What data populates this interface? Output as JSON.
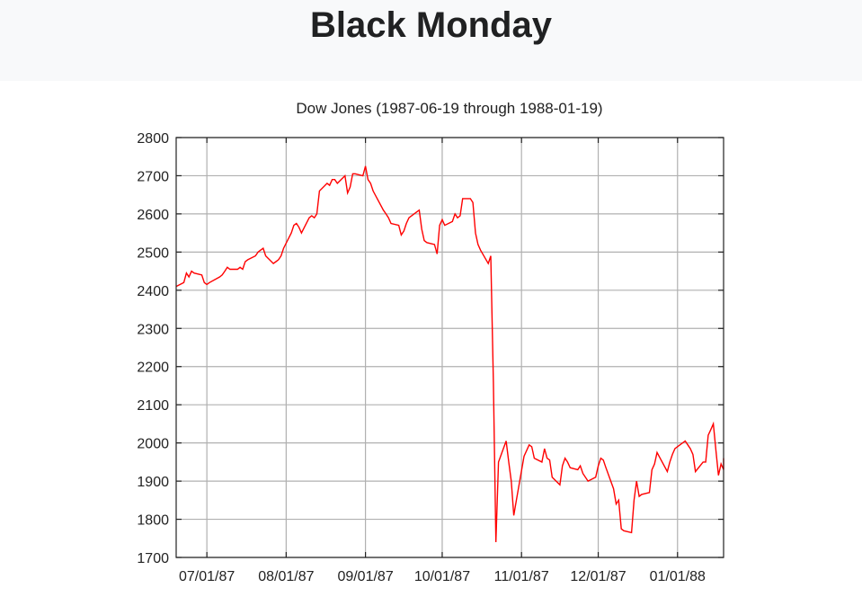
{
  "page": {
    "title": "Black Monday"
  },
  "chart_data": {
    "type": "line",
    "title": "Dow Jones (1987-06-19 through 1988-01-19)",
    "xlabel": "",
    "ylabel": "",
    "xlim": [
      "1987-06-19",
      "1988-01-19"
    ],
    "ylim": [
      1700,
      2800
    ],
    "grid": true,
    "line_color": "#ff0000",
    "x_ticks": [
      {
        "date": "1987-07-01",
        "label": "07/01/87"
      },
      {
        "date": "1987-08-01",
        "label": "08/01/87"
      },
      {
        "date": "1987-09-01",
        "label": "09/01/87"
      },
      {
        "date": "1987-10-01",
        "label": "10/01/87"
      },
      {
        "date": "1987-11-01",
        "label": "11/01/87"
      },
      {
        "date": "1987-12-01",
        "label": "12/01/87"
      },
      {
        "date": "1988-01-01",
        "label": "01/01/88"
      }
    ],
    "y_ticks": [
      1700,
      1800,
      1900,
      2000,
      2100,
      2200,
      2300,
      2400,
      2500,
      2600,
      2700,
      2800
    ],
    "series": [
      {
        "points": [
          [
            "1987-06-19",
            2410
          ],
          [
            "1987-06-22",
            2420
          ],
          [
            "1987-06-23",
            2445
          ],
          [
            "1987-06-24",
            2435
          ],
          [
            "1987-06-25",
            2450
          ],
          [
            "1987-06-26",
            2445
          ],
          [
            "1987-06-29",
            2440
          ],
          [
            "1987-06-30",
            2420
          ],
          [
            "1987-07-01",
            2415
          ],
          [
            "1987-07-02",
            2420
          ],
          [
            "1987-07-06",
            2435
          ],
          [
            "1987-07-07",
            2440
          ],
          [
            "1987-07-08",
            2450
          ],
          [
            "1987-07-09",
            2460
          ],
          [
            "1987-07-10",
            2455
          ],
          [
            "1987-07-13",
            2455
          ],
          [
            "1987-07-14",
            2460
          ],
          [
            "1987-07-15",
            2455
          ],
          [
            "1987-07-16",
            2475
          ],
          [
            "1987-07-17",
            2480
          ],
          [
            "1987-07-20",
            2490
          ],
          [
            "1987-07-21",
            2500
          ],
          [
            "1987-07-22",
            2505
          ],
          [
            "1987-07-23",
            2510
          ],
          [
            "1987-07-24",
            2490
          ],
          [
            "1987-07-27",
            2470
          ],
          [
            "1987-07-28",
            2475
          ],
          [
            "1987-07-29",
            2480
          ],
          [
            "1987-07-30",
            2490
          ],
          [
            "1987-07-31",
            2510
          ],
          [
            "1987-08-03",
            2550
          ],
          [
            "1987-08-04",
            2570
          ],
          [
            "1987-08-05",
            2575
          ],
          [
            "1987-08-06",
            2565
          ],
          [
            "1987-08-07",
            2550
          ],
          [
            "1987-08-10",
            2590
          ],
          [
            "1987-08-11",
            2595
          ],
          [
            "1987-08-12",
            2590
          ],
          [
            "1987-08-13",
            2600
          ],
          [
            "1987-08-14",
            2660
          ],
          [
            "1987-08-17",
            2680
          ],
          [
            "1987-08-18",
            2675
          ],
          [
            "1987-08-19",
            2690
          ],
          [
            "1987-08-20",
            2690
          ],
          [
            "1987-08-21",
            2680
          ],
          [
            "1987-08-24",
            2700
          ],
          [
            "1987-08-25",
            2655
          ],
          [
            "1987-08-26",
            2670
          ],
          [
            "1987-08-27",
            2705
          ],
          [
            "1987-08-28",
            2705
          ],
          [
            "1987-08-31",
            2700
          ],
          [
            "1987-09-01",
            2725
          ],
          [
            "1987-09-02",
            2690
          ],
          [
            "1987-09-03",
            2680
          ],
          [
            "1987-09-04",
            2660
          ],
          [
            "1987-09-08",
            2610
          ],
          [
            "1987-09-09",
            2600
          ],
          [
            "1987-09-10",
            2590
          ],
          [
            "1987-09-11",
            2575
          ],
          [
            "1987-09-14",
            2570
          ],
          [
            "1987-09-15",
            2545
          ],
          [
            "1987-09-16",
            2555
          ],
          [
            "1987-09-17",
            2575
          ],
          [
            "1987-09-18",
            2590
          ],
          [
            "1987-09-21",
            2605
          ],
          [
            "1987-09-22",
            2610
          ],
          [
            "1987-09-23",
            2560
          ],
          [
            "1987-09-24",
            2530
          ],
          [
            "1987-09-25",
            2525
          ],
          [
            "1987-09-28",
            2520
          ],
          [
            "1987-09-29",
            2495
          ],
          [
            "1987-09-30",
            2570
          ],
          [
            "1987-10-01",
            2585
          ],
          [
            "1987-10-02",
            2570
          ],
          [
            "1987-10-05",
            2580
          ],
          [
            "1987-10-06",
            2600
          ],
          [
            "1987-10-07",
            2590
          ],
          [
            "1987-10-08",
            2595
          ],
          [
            "1987-10-09",
            2640
          ],
          [
            "1987-10-12",
            2640
          ],
          [
            "1987-10-13",
            2630
          ],
          [
            "1987-10-14",
            2550
          ],
          [
            "1987-10-15",
            2520
          ],
          [
            "1987-10-16",
            2505
          ],
          [
            "1987-10-19",
            2470
          ],
          [
            "1987-10-20",
            2490
          ],
          [
            "1987-10-21",
            2160
          ],
          [
            "1987-10-22",
            1740
          ],
          [
            "1987-10-23",
            1950
          ],
          [
            "1987-10-26",
            2005
          ],
          [
            "1987-10-27",
            1950
          ],
          [
            "1987-10-28",
            1900
          ],
          [
            "1987-10-29",
            1810
          ],
          [
            "1987-10-30",
            1850
          ],
          [
            "1987-11-02",
            1965
          ],
          [
            "1987-11-03",
            1980
          ],
          [
            "1987-11-04",
            1995
          ],
          [
            "1987-11-05",
            1990
          ],
          [
            "1987-11-06",
            1960
          ],
          [
            "1987-11-09",
            1950
          ],
          [
            "1987-11-10",
            1985
          ],
          [
            "1987-11-11",
            1960
          ],
          [
            "1987-11-12",
            1955
          ],
          [
            "1987-11-13",
            1910
          ],
          [
            "1987-11-16",
            1890
          ],
          [
            "1987-11-17",
            1940
          ],
          [
            "1987-11-18",
            1960
          ],
          [
            "1987-11-19",
            1950
          ],
          [
            "1987-11-20",
            1935
          ],
          [
            "1987-11-23",
            1930
          ],
          [
            "1987-11-24",
            1940
          ],
          [
            "1987-11-25",
            1920
          ],
          [
            "1987-11-27",
            1900
          ],
          [
            "1987-11-30",
            1910
          ],
          [
            "1987-12-01",
            1940
          ],
          [
            "1987-12-02",
            1960
          ],
          [
            "1987-12-03",
            1955
          ],
          [
            "1987-12-04",
            1935
          ],
          [
            "1987-12-07",
            1880
          ],
          [
            "1987-12-08",
            1840
          ],
          [
            "1987-12-09",
            1850
          ],
          [
            "1987-12-10",
            1775
          ],
          [
            "1987-12-11",
            1770
          ],
          [
            "1987-12-14",
            1765
          ],
          [
            "1987-12-15",
            1850
          ],
          [
            "1987-12-16",
            1900
          ],
          [
            "1987-12-17",
            1860
          ],
          [
            "1987-12-18",
            1865
          ],
          [
            "1987-12-21",
            1870
          ],
          [
            "1987-12-22",
            1930
          ],
          [
            "1987-12-23",
            1945
          ],
          [
            "1987-12-24",
            1975
          ],
          [
            "1987-12-28",
            1925
          ],
          [
            "1987-12-29",
            1950
          ],
          [
            "1987-12-30",
            1970
          ],
          [
            "1987-12-31",
            1985
          ],
          [
            "1988-01-04",
            2005
          ],
          [
            "1988-01-05",
            1995
          ],
          [
            "1988-01-06",
            1985
          ],
          [
            "1988-01-07",
            1970
          ],
          [
            "1988-01-08",
            1925
          ],
          [
            "1988-01-11",
            1950
          ],
          [
            "1988-01-12",
            1950
          ],
          [
            "1988-01-13",
            2020
          ],
          [
            "1988-01-14",
            2035
          ],
          [
            "1988-01-15",
            2050
          ],
          [
            "1988-01-16",
            1980
          ],
          [
            "1988-01-17",
            1915
          ],
          [
            "1988-01-18",
            1945
          ],
          [
            "1988-01-19",
            1930
          ],
          [
            "1988-01-20",
            1955
          ],
          [
            "1988-01-21",
            1960
          ]
        ]
      }
    ]
  }
}
